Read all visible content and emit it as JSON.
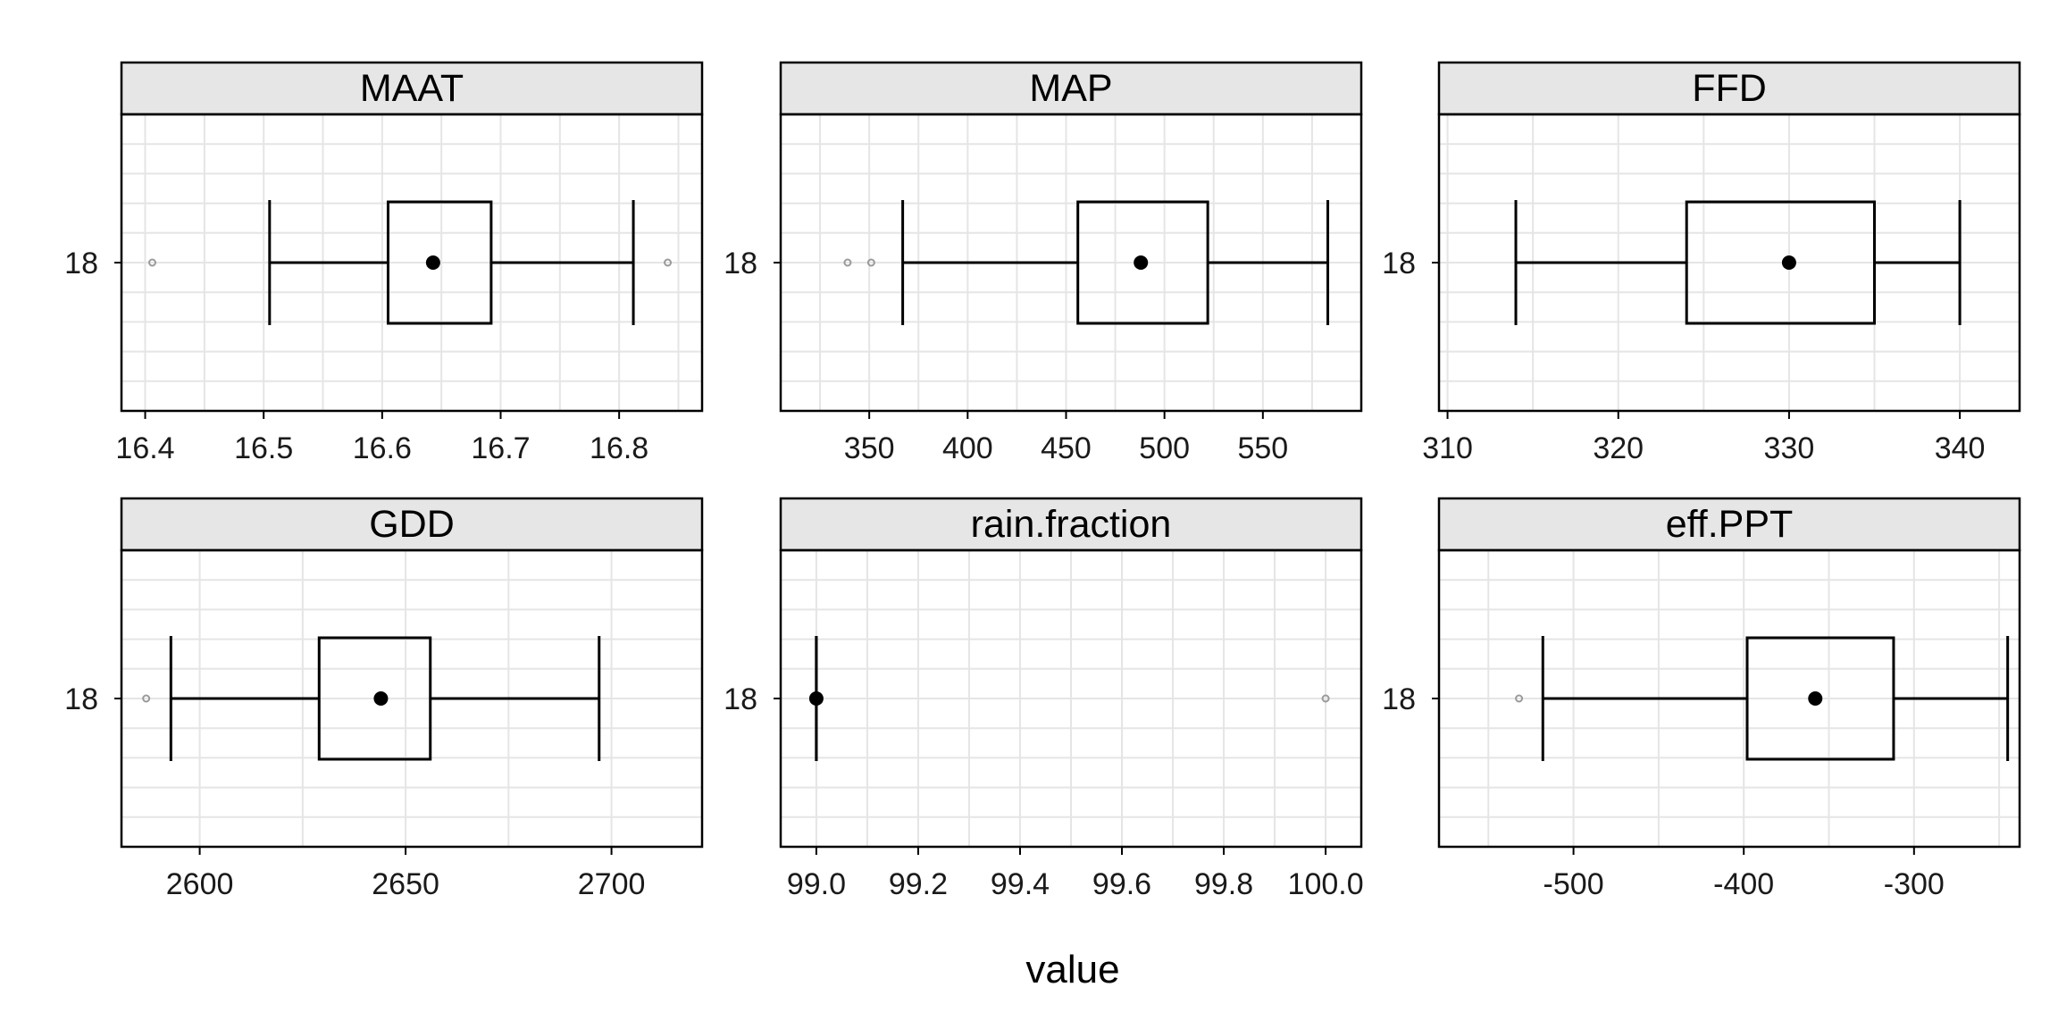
{
  "chart_data": {
    "type": "boxplot",
    "layout": "faceted-grid",
    "rows": 2,
    "cols": 3,
    "xlabel": "value",
    "ylabel": "",
    "grid": true,
    "category_label": "18",
    "colors": {
      "strip_bg": "#e6e6e6",
      "grid": "#e5e5e5",
      "box": "#000000",
      "outlier": "#9a9a9a"
    },
    "panels": [
      {
        "name": "MAAT",
        "xlim": [
          16.38,
          16.87
        ],
        "ticks": [
          16.4,
          16.5,
          16.6,
          16.7,
          16.8
        ],
        "tick_labels": [
          "16.4",
          "16.5",
          "16.6",
          "16.7",
          "16.8"
        ],
        "whisker_low": 16.505,
        "q1": 16.605,
        "median": 16.643,
        "q3": 16.692,
        "whisker_high": 16.812,
        "outliers": [
          16.406,
          16.841
        ]
      },
      {
        "name": "MAP",
        "xlim": [
          305,
          600
        ],
        "ticks": [
          350,
          400,
          450,
          500,
          550
        ],
        "tick_labels": [
          "350",
          "400",
          "450",
          "500",
          "550"
        ],
        "whisker_low": 367,
        "q1": 456,
        "median": 488,
        "q3": 522,
        "whisker_high": 583,
        "outliers": [
          339,
          351
        ]
      },
      {
        "name": "FFD",
        "xlim": [
          309.5,
          343.5
        ],
        "ticks": [
          310,
          320,
          330,
          340
        ],
        "tick_labels": [
          "310",
          "320",
          "330",
          "340"
        ],
        "whisker_low": 314,
        "q1": 324,
        "median": 330,
        "q3": 335,
        "whisker_high": 340,
        "outliers": []
      },
      {
        "name": "GDD",
        "xlim": [
          2581,
          2722
        ],
        "ticks": [
          2600,
          2650,
          2700
        ],
        "tick_labels": [
          "2600",
          "2650",
          "2700"
        ],
        "whisker_low": 2593,
        "q1": 2629,
        "median": 2644,
        "q3": 2656,
        "whisker_high": 2697,
        "outliers": [
          2587
        ]
      },
      {
        "name": "rain.fraction",
        "xlim": [
          98.93,
          100.07
        ],
        "ticks": [
          99.0,
          99.2,
          99.4,
          99.6,
          99.8,
          100.0
        ],
        "tick_labels": [
          "99.0",
          "99.2",
          "99.4",
          "99.6",
          "99.8",
          "100.0"
        ],
        "whisker_low": 99.0,
        "q1": 99.0,
        "median": 99.0,
        "q3": 99.0,
        "whisker_high": 99.0,
        "outliers": [
          100.0
        ]
      },
      {
        "name": "eff.PPT",
        "xlim": [
          -579,
          -238
        ],
        "ticks": [
          -500,
          -400,
          -300
        ],
        "tick_labels": [
          "-500",
          "-400",
          "-300"
        ],
        "whisker_low": -518,
        "q1": -398,
        "median": -358,
        "q3": -312,
        "whisker_high": -245,
        "outliers": [
          -532
        ]
      }
    ]
  }
}
